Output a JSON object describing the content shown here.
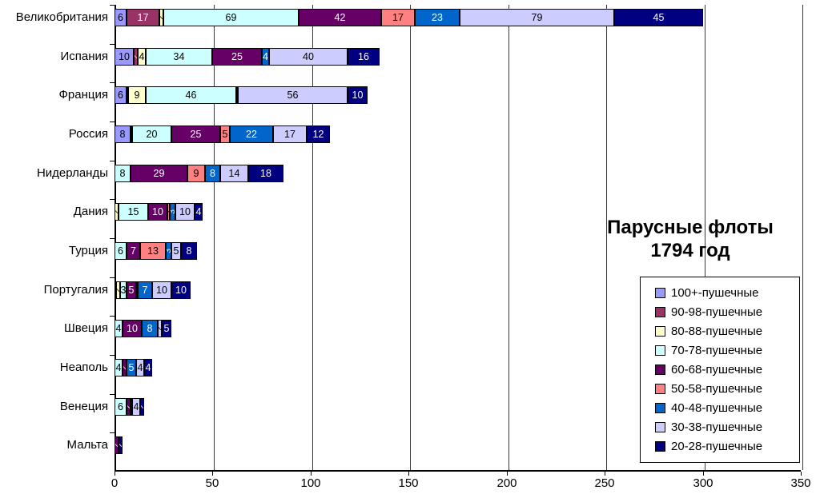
{
  "title": {
    "line1": "Парусные флоты",
    "line2": "1794 год"
  },
  "x_axis": {
    "tick_labels": [
      "0",
      "50",
      "100",
      "150",
      "200",
      "250",
      "300",
      "350"
    ]
  },
  "chart_data": {
    "type": "bar",
    "stacked": true,
    "orientation": "horizontal",
    "title": "Парусные флоты 1794 год",
    "xlabel": "",
    "ylabel": "",
    "xlim": [
      0,
      350
    ],
    "xticks": [
      0,
      50,
      100,
      150,
      200,
      250,
      300,
      350
    ],
    "grid": true,
    "legend_position": "right-bottom",
    "categories": [
      "Великобритания",
      "Испания",
      "Франция",
      "Россия",
      "Нидерланды",
      "Дания",
      "Турция",
      "Португалия",
      "Швеция",
      "Неаполь",
      "Венеция",
      "Мальта"
    ],
    "series": [
      {
        "name": "100+-пушечные",
        "color": "#9999FF",
        "text_color": "#000000",
        "values": [
          6,
          10,
          6,
          8,
          0,
          0,
          0,
          0,
          0,
          0,
          0,
          0
        ]
      },
      {
        "name": "90-98-пушечные",
        "color": "#993366",
        "text_color": "#FFFFFF",
        "values": [
          17,
          2,
          1,
          1,
          0,
          0,
          0,
          1,
          0,
          0,
          0,
          0
        ]
      },
      {
        "name": "80-88-пушечные",
        "color": "#FFFFCC",
        "text_color": "#000000",
        "values": [
          2,
          4,
          9,
          0,
          0,
          2,
          0,
          2,
          0,
          0,
          0,
          0
        ]
      },
      {
        "name": "70-78-пушечные",
        "color": "#CCFFFF",
        "text_color": "#000000",
        "values": [
          69,
          34,
          46,
          20,
          8,
          15,
          6,
          3,
          4,
          4,
          6,
          0
        ]
      },
      {
        "name": "60-68-пушечные",
        "color": "#660066",
        "text_color": "#FFFFFF",
        "values": [
          42,
          25,
          1,
          25,
          29,
          10,
          7,
          5,
          10,
          2,
          2,
          2
        ]
      },
      {
        "name": "50-58-пушечные",
        "color": "#FF8080",
        "text_color": "#000000",
        "values": [
          17,
          0,
          0,
          5,
          9,
          1,
          13,
          1,
          0,
          0,
          0,
          0
        ]
      },
      {
        "name": "40-48-пушечные",
        "color": "#0066CC",
        "text_color": "#FFFFFF",
        "values": [
          23,
          4,
          0,
          22,
          8,
          3,
          3,
          7,
          8,
          5,
          1,
          0
        ]
      },
      {
        "name": "30-38-пушечные",
        "color": "#CCCCFF",
        "text_color": "#000000",
        "values": [
          79,
          40,
          56,
          17,
          14,
          10,
          5,
          10,
          2,
          4,
          4,
          0
        ]
      },
      {
        "name": "20-28-пушечные",
        "color": "#000080",
        "text_color": "#FFFFFF",
        "values": [
          45,
          16,
          10,
          12,
          18,
          4,
          8,
          10,
          5,
          4,
          2,
          2
        ]
      }
    ]
  }
}
